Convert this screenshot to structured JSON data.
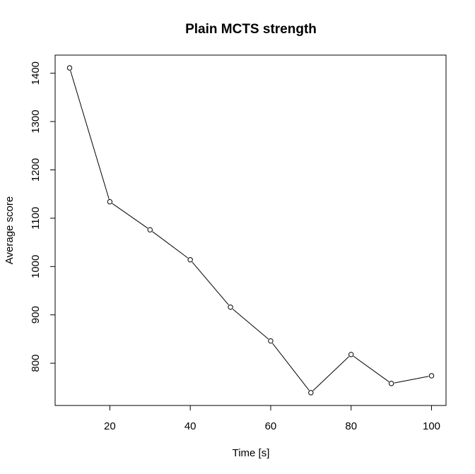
{
  "chart_data": {
    "type": "line",
    "title": "Plain MCTS strength",
    "xlabel": "Time [s]",
    "ylabel": "Average score",
    "x": [
      10,
      20,
      30,
      40,
      50,
      60,
      70,
      80,
      90,
      100
    ],
    "y": [
      1411,
      1134,
      1076,
      1014,
      916,
      846,
      739,
      818,
      758,
      774
    ],
    "xlim": [
      6.4,
      103.6
    ],
    "ylim": [
      712.5,
      1437.5
    ],
    "x_ticks": [
      20,
      40,
      60,
      80,
      100
    ],
    "y_ticks": [
      800,
      900,
      1000,
      1100,
      1200,
      1300,
      1400
    ],
    "grid": false,
    "marker": "open-circle",
    "line_color": "#000000"
  }
}
